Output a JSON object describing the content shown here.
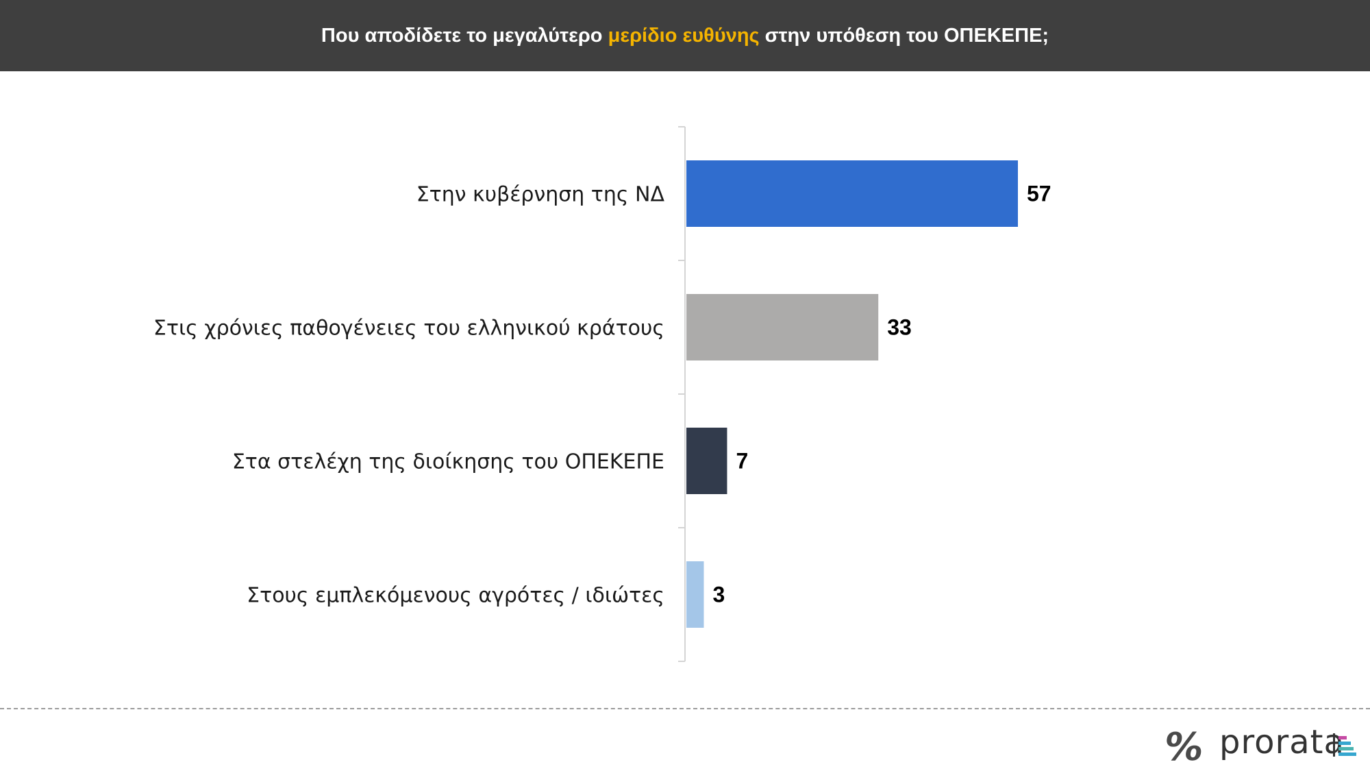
{
  "header": {
    "title_before": "Που αποδίδετε το μεγαλύτερο ",
    "title_highlight": "μερίδιο ευθύνης",
    "title_after": " στην υπόθεση του ΟΠΕΚΕΠΕ;",
    "highlight_color": "#f5b400"
  },
  "chart_data": {
    "type": "bar",
    "orientation": "horizontal",
    "categories": [
      "Στην κυβέρνηση της ΝΔ",
      "Στις χρόνιες παθογένειες του ελληνικού κράτους",
      "Στα στελέχη της διοίκησης του ΟΠΕΚΕΠΕ",
      "Στους εμπλεκόμενους αγρότες / ιδιώτες"
    ],
    "values": [
      57,
      33,
      7,
      3
    ],
    "colors": [
      "#306dce",
      "#acabaa",
      "#323b4c",
      "#a4c6e8"
    ],
    "xlim": [
      0,
      100
    ],
    "grid": false,
    "legend": false
  },
  "footer": {
    "percent_icon": "percent-icon",
    "brand": "prorata"
  }
}
